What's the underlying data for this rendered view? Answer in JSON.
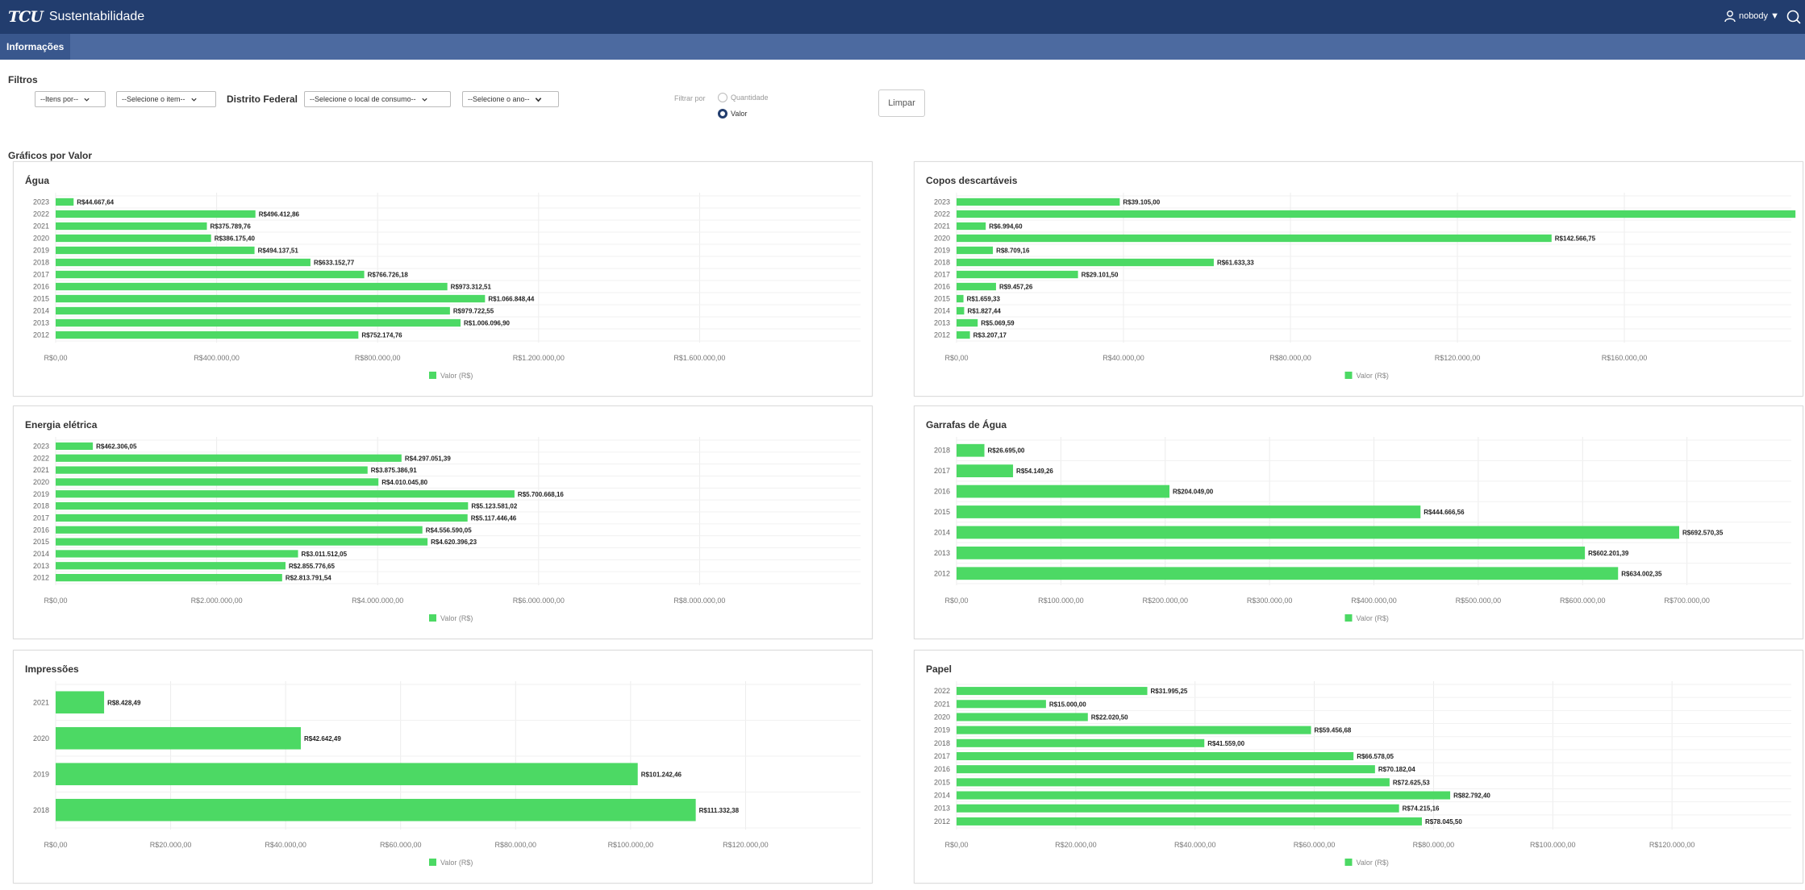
{
  "header": {
    "logo": "TCU",
    "app_title": "Sustentabilidade",
    "user": "nobody ▼"
  },
  "nav": {
    "tab_label": "Informações"
  },
  "filters": {
    "title": "Filtros",
    "item_type": "--Itens por--",
    "item": "--Selecione o item--",
    "region": "Distrito Federal",
    "location": "--Selecione o local de consumo--",
    "year": "--Selecione o ano--",
    "filter_by_label": "Filtrar por",
    "option_quantity": "Quantidade",
    "option_value": "Valor",
    "clear_label": "Limpar"
  },
  "section_title": "Gráficos por Valor",
  "colors": {
    "bar": "#4cd964",
    "header": "#223d6e",
    "nav": "#4c6aa0"
  },
  "chart_data": [
    {
      "title": "Água",
      "type": "bar",
      "orientation": "horizontal",
      "categories": [
        "2023",
        "2022",
        "2021",
        "2020",
        "2019",
        "2018",
        "2017",
        "2016",
        "2015",
        "2014",
        "2013",
        "2012"
      ],
      "values": [
        44667.64,
        496412.86,
        375789.76,
        386175.4,
        494137.51,
        633152.77,
        766726.18,
        973312.51,
        1066848.44,
        979722.55,
        1006096.9,
        752174.76
      ],
      "data_labels": [
        "R$44.667,64",
        "R$496.412,86",
        "R$375.789,76",
        "R$386.175,40",
        "R$494.137,51",
        "R$633.152,77",
        "R$766.726,18",
        "R$973.312,51",
        "R$1.066.848,44",
        "R$979.722,55",
        "R$1.006.096,90",
        "R$752.174,76"
      ],
      "ticks": [
        0,
        400000,
        800000,
        1200000,
        1600000
      ],
      "tick_labels": [
        "R$0,00",
        "R$400.000,00",
        "R$800.000,00",
        "R$1.200.000,00",
        "R$1.600.000,00"
      ],
      "xlim": [
        0,
        2000000
      ],
      "legend": "Valor (R$)"
    },
    {
      "title": "Copos descartáveis",
      "type": "bar",
      "orientation": "horizontal",
      "categories": [
        "2023",
        "2022",
        "2021",
        "2020",
        "2019",
        "2018",
        "2017",
        "2016",
        "2015",
        "2014",
        "2013",
        "2012"
      ],
      "values": [
        39105.0,
        201000.0,
        6994.6,
        142566.75,
        8709.16,
        61633.33,
        29101.5,
        9457.26,
        1659.33,
        1827.44,
        5069.59,
        3207.17
      ],
      "data_labels": [
        "R$39.105,00",
        "",
        "R$6.994,60",
        "R$142.566,75",
        "R$8.709,16",
        "R$61.633,33",
        "R$29.101,50",
        "R$9.457,26",
        "R$1.659,33",
        "R$1.827,44",
        "R$5.069,59",
        "R$3.207,17"
      ],
      "ticks": [
        0,
        40000,
        80000,
        120000,
        160000
      ],
      "tick_labels": [
        "R$0,00",
        "R$40.000,00",
        "R$80.000,00",
        "R$120.000,00",
        "R$160.000,00"
      ],
      "xlim": [
        0,
        200000
      ],
      "legend": "Valor (R$)"
    },
    {
      "title": "Energia elétrica",
      "type": "bar",
      "orientation": "horizontal",
      "categories": [
        "2023",
        "2022",
        "2021",
        "2020",
        "2019",
        "2018",
        "2017",
        "2016",
        "2015",
        "2014",
        "2013",
        "2012"
      ],
      "values": [
        462306.05,
        4297051.39,
        3875386.91,
        4010045.8,
        5700668.16,
        5123581.02,
        5117446.46,
        4556590.05,
        4620396.23,
        3011512.05,
        2855776.65,
        2813791.54
      ],
      "data_labels": [
        "R$462.306,05",
        "R$4.297.051,39",
        "R$3.875.386,91",
        "R$4.010.045,80",
        "R$5.700.668,16",
        "R$5.123.581,02",
        "R$5.117.446,46",
        "R$4.556.590,05",
        "R$4.620.396,23",
        "R$3.011.512,05",
        "R$2.855.776,65",
        "R$2.813.791,54"
      ],
      "ticks": [
        0,
        2000000,
        4000000,
        6000000,
        8000000
      ],
      "tick_labels": [
        "R$0,00",
        "R$2.000.000,00",
        "R$4.000.000,00",
        "R$6.000.000,00",
        "R$8.000.000,00"
      ],
      "xlim": [
        0,
        10000000
      ],
      "legend": "Valor (R$)"
    },
    {
      "title": "Garrafas de Água",
      "type": "bar",
      "orientation": "horizontal",
      "categories": [
        "2018",
        "2017",
        "2016",
        "2015",
        "2014",
        "2013",
        "2012"
      ],
      "values": [
        26695.0,
        54149.26,
        204049.0,
        444666.56,
        692570.35,
        602201.39,
        634002.35
      ],
      "data_labels": [
        "R$26.695,00",
        "R$54.149,26",
        "R$204.049,00",
        "R$444.666,56",
        "R$692.570,35",
        "R$602.201,39",
        "R$634.002,35"
      ],
      "ticks": [
        0,
        100000,
        200000,
        300000,
        400000,
        500000,
        600000,
        700000
      ],
      "tick_labels": [
        "R$0,00",
        "R$100.000,00",
        "R$200.000,00",
        "R$300.000,00",
        "R$400.000,00",
        "R$500.000,00",
        "R$600.000,00",
        "R$700.000,00"
      ],
      "xlim": [
        0,
        800000
      ],
      "legend": "Valor (R$)"
    },
    {
      "title": "Impressões",
      "type": "bar",
      "orientation": "horizontal",
      "categories": [
        "2021",
        "2020",
        "2019",
        "2018"
      ],
      "values": [
        8428.49,
        42642.49,
        101242.46,
        111332.38
      ],
      "data_labels": [
        "R$8.428,49",
        "R$42.642,49",
        "R$101.242,46",
        "R$111.332,38"
      ],
      "ticks": [
        0,
        20000,
        40000,
        60000,
        80000,
        100000,
        120000
      ],
      "tick_labels": [
        "R$0,00",
        "R$20.000,00",
        "R$40.000,00",
        "R$60.000,00",
        "R$80.000,00",
        "R$100.000,00",
        "R$120.000,00"
      ],
      "xlim": [
        0,
        140000
      ],
      "legend": "Valor (R$)"
    },
    {
      "title": "Papel",
      "type": "bar",
      "orientation": "horizontal",
      "categories": [
        "2022",
        "2021",
        "2020",
        "2019",
        "2018",
        "2017",
        "2016",
        "2015",
        "2014",
        "2013",
        "2012"
      ],
      "values": [
        31995.25,
        15000.0,
        22020.5,
        59456.68,
        41559.0,
        66578.05,
        70182.04,
        72625.53,
        82792.4,
        74215.16,
        78045.5
      ],
      "data_labels": [
        "R$31.995,25",
        "R$15.000,00",
        "R$22.020,50",
        "R$59.456,68",
        "R$41.559,00",
        "R$66.578,05",
        "R$70.182,04",
        "R$72.625,53",
        "R$82.792,40",
        "R$74.215,16",
        "R$78.045,50"
      ],
      "ticks": [
        0,
        20000,
        40000,
        60000,
        80000,
        100000,
        120000
      ],
      "tick_labels": [
        "R$0,00",
        "R$20.000,00",
        "R$40.000,00",
        "R$60.000,00",
        "R$80.000,00",
        "R$100.000,00",
        "R$120.000,00"
      ],
      "xlim": [
        0,
        140000
      ],
      "legend": "Valor (R$)"
    }
  ]
}
